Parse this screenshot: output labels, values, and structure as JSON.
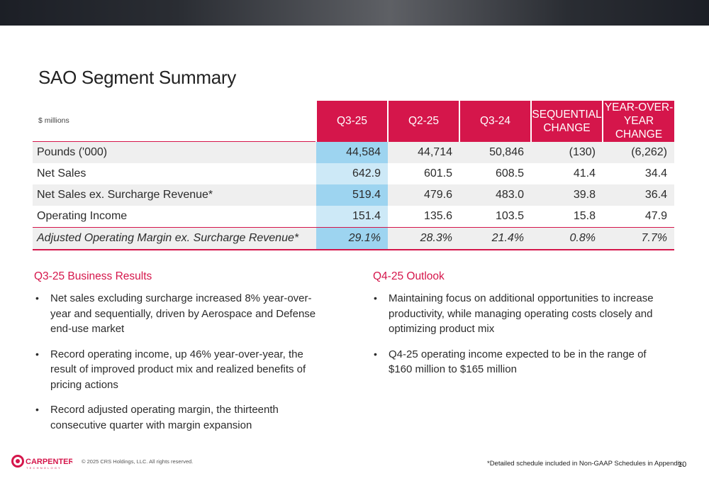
{
  "header": {
    "title": "SAO Segment Summary"
  },
  "table": {
    "units_label": "$ millions",
    "columns": [
      "Q3-25",
      "Q2-25",
      "Q3-24",
      "SEQUENTIAL CHANGE",
      "YEAR-OVER-YEAR CHANGE"
    ],
    "columns_lines": [
      [
        "Q3-25"
      ],
      [
        "Q2-25"
      ],
      [
        "Q3-24"
      ],
      [
        "SEQUENTIAL",
        "CHANGE"
      ],
      [
        "YEAR-OVER-",
        "YEAR CHANGE"
      ]
    ],
    "rows": [
      {
        "label": "Pounds ('000)",
        "values": [
          "44,584",
          "44,714",
          "50,846",
          "(130)",
          "(6,262)"
        ]
      },
      {
        "label": "Net Sales",
        "values": [
          "642.9",
          "601.5",
          "608.5",
          "41.4",
          "34.4"
        ]
      },
      {
        "label": "Net Sales ex. Surcharge Revenue*",
        "values": [
          "519.4",
          "479.6",
          "483.0",
          "39.8",
          "36.4"
        ]
      },
      {
        "label": "Operating Income",
        "values": [
          "151.4",
          "135.6",
          "103.5",
          "15.8",
          "47.9"
        ]
      },
      {
        "label": "Adjusted Operating Margin ex. Surcharge Revenue*",
        "values": [
          "29.1%",
          "28.3%",
          "21.4%",
          "0.8%",
          "7.7%"
        ]
      }
    ]
  },
  "results": {
    "heading": "Q3-25 Business Results",
    "bullets": [
      "Net sales excluding surcharge increased 8% year-over-year and sequentially, driven by Aerospace and Defense end-use market",
      "Record operating income, up 46% year-over-year, the result of improved product mix and realized benefits of pricing actions",
      "Record adjusted operating margin, the thirteenth consecutive quarter with margin expansion"
    ]
  },
  "outlook": {
    "heading": "Q4-25 Outlook",
    "bullets": [
      "Maintaining focus on additional opportunities to increase productivity, while managing operating costs closely and optimizing product mix",
      "Q4-25 operating income expected to be in the range of $160 million to $165 million"
    ]
  },
  "footer": {
    "logo_text": "CARPENTER",
    "logo_subtext": "TECHNOLOGY",
    "copyright": "© 2025 CRS Holdings, LLC. All rights reserved.",
    "footnote": "*Detailed schedule included in Non-GAAP Schedules in Appendix.",
    "page_number": "10"
  },
  "colors": {
    "accent": "#d5164b",
    "highlight_light": "#cde9f7",
    "highlight_dark": "#9dd4f0",
    "row_shade": "#efefef"
  }
}
